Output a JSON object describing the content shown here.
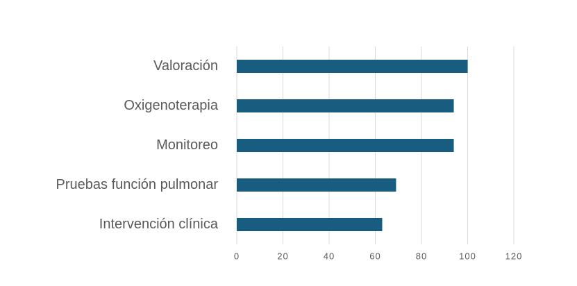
{
  "chart_data": {
    "type": "bar",
    "orientation": "horizontal",
    "categories": [
      "Valoración",
      "Oxigenoterapia",
      "Monitoreo",
      "Pruebas función pulmonar",
      "Intervención clínica"
    ],
    "values": [
      100,
      94,
      94,
      69,
      63
    ],
    "color": "#185d80",
    "xlim": [
      0,
      120
    ],
    "xticks": [
      0,
      20,
      40,
      60,
      80,
      100,
      120
    ],
    "grid": true
  }
}
